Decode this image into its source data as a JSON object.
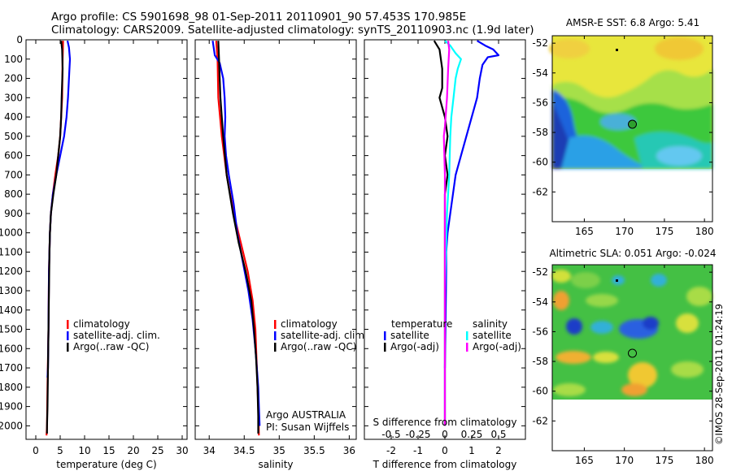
{
  "header": {
    "line1": "Argo profile: CS 5901698_98 01-Sep-2011 20110901_90 57.453S 170.985E",
    "line2": "Climatology: CARS2009. Satellite-adjusted climatology: synTS_20110903.nc (1.9d later)"
  },
  "credit": "©IMOS 28-Sep-2011 01:24:19",
  "colors": {
    "climatology": "#ff0000",
    "satellite": "#0000ff",
    "argo": "#000000",
    "salinity_satellite": "#00ffff",
    "salinity_argo": "#ff00ff"
  },
  "chart_data": [
    {
      "type": "line",
      "xlabel": "temperature (deg C)",
      "xlim": [
        -2,
        31
      ],
      "ylim": [
        0,
        2070
      ],
      "y_inverted": true,
      "x_ticks": [
        0,
        5,
        10,
        15,
        20,
        25,
        30
      ],
      "y_ticks": [
        0,
        100,
        200,
        300,
        400,
        500,
        600,
        700,
        800,
        900,
        1000,
        1100,
        1200,
        1300,
        1400,
        1500,
        1600,
        1700,
        1800,
        1900,
        2000
      ],
      "legend": [
        "climatology",
        "satellite-adj. clim.",
        "Argo(..raw -QC)"
      ],
      "legend_placement": "lower-middle",
      "series": [
        {
          "name": "climatology",
          "color": "#ff0000",
          "points": [
            [
              5.6,
              5
            ],
            [
              5.5,
              100
            ],
            [
              5.4,
              300
            ],
            [
              5.0,
              500
            ],
            [
              4.6,
              600
            ],
            [
              4.0,
              700
            ],
            [
              3.5,
              800
            ],
            [
              3.1,
              900
            ],
            [
              2.9,
              1000
            ],
            [
              2.7,
              1200
            ],
            [
              2.6,
              1500
            ],
            [
              2.4,
              1800
            ],
            [
              2.3,
              2000
            ],
            [
              2.2,
              2050
            ]
          ]
        },
        {
          "name": "satellite-adj. clim.",
          "color": "#0000ff",
          "points": [
            [
              6.5,
              5
            ],
            [
              6.8,
              40
            ],
            [
              7.0,
              100
            ],
            [
              6.8,
              200
            ],
            [
              6.6,
              300
            ],
            [
              6.3,
              400
            ],
            [
              5.8,
              500
            ],
            [
              5.0,
              600
            ],
            [
              4.2,
              700
            ],
            [
              3.5,
              800
            ],
            [
              3.1,
              900
            ],
            [
              2.9,
              1000
            ],
            [
              2.7,
              1200
            ],
            [
              2.6,
              1500
            ],
            [
              2.5,
              1700
            ],
            [
              2.4,
              1750
            ]
          ]
        },
        {
          "name": "Argo(..raw -QC)",
          "color": "#000000",
          "points": [
            [
              5.2,
              5
            ],
            [
              5.4,
              50
            ],
            [
              5.5,
              150
            ],
            [
              5.3,
              300
            ],
            [
              5.2,
              400
            ],
            [
              5.0,
              500
            ],
            [
              4.6,
              600
            ],
            [
              4.2,
              700
            ],
            [
              3.6,
              800
            ],
            [
              3.1,
              900
            ],
            [
              2.9,
              1000
            ],
            [
              2.8,
              1100
            ],
            [
              2.7,
              1300
            ],
            [
              2.6,
              1500
            ],
            [
              2.5,
              1700
            ],
            [
              2.4,
              1900
            ],
            [
              2.3,
              2000
            ],
            [
              2.3,
              2040
            ]
          ]
        }
      ]
    },
    {
      "type": "line",
      "xlabel": "salinity",
      "xlim": [
        33.8,
        36.1
      ],
      "ylim": [
        0,
        2070
      ],
      "y_inverted": true,
      "x_ticks": [
        34,
        34.5,
        35,
        35.5,
        36
      ],
      "legend": [
        "climatology",
        "satellite-adj. clim.",
        "Argo(..raw -QC)"
      ],
      "legend_placement": "lower-right",
      "annotations": [
        "Argo AUSTRALIA",
        "PI: Susan Wijffels"
      ],
      "series": [
        {
          "name": "climatology",
          "color": "#ff0000",
          "points": [
            [
              34.1,
              5
            ],
            [
              34.12,
              100
            ],
            [
              34.13,
              300
            ],
            [
              34.18,
              500
            ],
            [
              34.25,
              700
            ],
            [
              34.35,
              900
            ],
            [
              34.45,
              1050
            ],
            [
              34.55,
              1200
            ],
            [
              34.62,
              1350
            ],
            [
              34.66,
              1500
            ],
            [
              34.68,
              1700
            ],
            [
              34.7,
              1900
            ],
            [
              34.71,
              2050
            ]
          ]
        },
        {
          "name": "satellite-adj. clim.",
          "color": "#0000ff",
          "points": [
            [
              34.05,
              5
            ],
            [
              34.08,
              80
            ],
            [
              34.15,
              120
            ],
            [
              34.2,
              200
            ],
            [
              34.22,
              300
            ],
            [
              34.23,
              400
            ],
            [
              34.22,
              500
            ],
            [
              34.24,
              600
            ],
            [
              34.28,
              700
            ],
            [
              34.35,
              850
            ],
            [
              34.4,
              1000
            ],
            [
              34.48,
              1150
            ],
            [
              34.56,
              1300
            ],
            [
              34.62,
              1450
            ],
            [
              34.66,
              1600
            ],
            [
              34.68,
              1700
            ],
            [
              34.7,
              1800
            ],
            [
              34.71,
              1900
            ],
            [
              34.72,
              2000
            ]
          ]
        },
        {
          "name": "Argo(..raw -QC)",
          "color": "#000000",
          "points": [
            [
              34.13,
              5
            ],
            [
              34.14,
              100
            ],
            [
              34.15,
              200
            ],
            [
              34.16,
              300
            ],
            [
              34.18,
              400
            ],
            [
              34.2,
              500
            ],
            [
              34.25,
              700
            ],
            [
              34.34,
              900
            ],
            [
              34.42,
              1050
            ],
            [
              34.52,
              1200
            ],
            [
              34.6,
              1350
            ],
            [
              34.64,
              1500
            ],
            [
              34.67,
              1650
            ],
            [
              34.69,
              1800
            ],
            [
              34.7,
              1950
            ],
            [
              34.7,
              2040
            ]
          ]
        }
      ]
    },
    {
      "type": "line",
      "xlabel": "T difference from climatology",
      "xlabel2": "S difference from climatology",
      "xlim": [
        -3,
        3
      ],
      "ylim": [
        0,
        2070
      ],
      "y_inverted": true,
      "x_ticks": [
        -2,
        -1,
        0,
        1,
        2
      ],
      "x_ticks2": [
        -0.5,
        -0.25,
        0,
        0.25,
        0.5
      ],
      "legend_headers": [
        "temperature",
        "salinity"
      ],
      "legend": [
        "satellite",
        "Argo(-adj)",
        "satellite",
        "Argo(-adj)"
      ],
      "legend_placement": "lower-middle",
      "series": [
        {
          "name": "temperature satellite",
          "color": "#0000ff",
          "points": [
            [
              1.2,
              5
            ],
            [
              1.5,
              30
            ],
            [
              1.8,
              50
            ],
            [
              2.0,
              80
            ],
            [
              1.6,
              90
            ],
            [
              1.4,
              130
            ],
            [
              1.3,
              200
            ],
            [
              1.2,
              300
            ],
            [
              1.0,
              400
            ],
            [
              0.8,
              500
            ],
            [
              0.6,
              600
            ],
            [
              0.4,
              700
            ],
            [
              0.3,
              800
            ],
            [
              0.2,
              900
            ],
            [
              0.1,
              1000
            ],
            [
              0.05,
              1100
            ],
            [
              0.05,
              1200
            ],
            [
              0.02,
              1500
            ],
            [
              0.0,
              1700
            ]
          ]
        },
        {
          "name": "temperature Argo(-adj)",
          "color": "#000000",
          "points": [
            [
              -0.4,
              5
            ],
            [
              -0.2,
              50
            ],
            [
              -0.1,
              150
            ],
            [
              -0.1,
              250
            ],
            [
              -0.2,
              300
            ],
            [
              0.0,
              400
            ],
            [
              0.1,
              500
            ],
            [
              0.0,
              600
            ],
            [
              0.1,
              700
            ],
            [
              0.0,
              800
            ],
            [
              0.0,
              900
            ],
            [
              0.0,
              1100
            ],
            [
              0.0,
              1500
            ],
            [
              0.0,
              2000
            ]
          ]
        },
        {
          "name": "salinity satellite",
          "color": "#00ffff",
          "points": [
            [
              0.0,
              5
            ],
            [
              0.05,
              30
            ],
            [
              0.1,
              70
            ],
            [
              0.15,
              100
            ],
            [
              0.12,
              150
            ],
            [
              0.1,
              200
            ],
            [
              0.08,
              300
            ],
            [
              0.06,
              400
            ],
            [
              0.05,
              500
            ],
            [
              0.04,
              700
            ],
            [
              0.02,
              900
            ],
            [
              0.01,
              1100
            ],
            [
              0.0,
              1300
            ],
            [
              0.0,
              1600
            ],
            [
              0.0,
              2000
            ]
          ]
        },
        {
          "name": "salinity Argo(-adj)",
          "color": "#ff00ff",
          "points": [
            [
              0.03,
              5
            ],
            [
              0.04,
              50
            ],
            [
              0.03,
              150
            ],
            [
              0.02,
              300
            ],
            [
              0.0,
              450
            ],
            [
              -0.01,
              500
            ],
            [
              0.0,
              700
            ],
            [
              0.0,
              1000
            ],
            [
              0.0,
              1500
            ],
            [
              0.0,
              2000
            ]
          ]
        }
      ]
    },
    {
      "type": "heatmap",
      "title": "AMSR-E SST: 6.8  Argo: 5.41",
      "xlim": [
        161,
        181
      ],
      "ylim": [
        -64,
        -51.5
      ],
      "x_ticks": [
        165,
        170,
        175,
        180
      ],
      "y_ticks": [
        -52,
        -54,
        -56,
        -58,
        -60,
        -62
      ],
      "argo_position": [
        171,
        -57.45
      ],
      "data_extent_lat_min": -60
    },
    {
      "type": "heatmap",
      "title": "Altimetric SLA: 0.051  Argo: -0.024",
      "xlim": [
        161,
        181
      ],
      "ylim": [
        -64,
        -51.5
      ],
      "x_ticks": [
        165,
        170,
        175,
        180
      ],
      "y_ticks": [
        -52,
        -54,
        -56,
        -58,
        -60,
        -62
      ],
      "argo_position": [
        171,
        -57.45
      ],
      "data_extent_lat_min": -60
    }
  ]
}
